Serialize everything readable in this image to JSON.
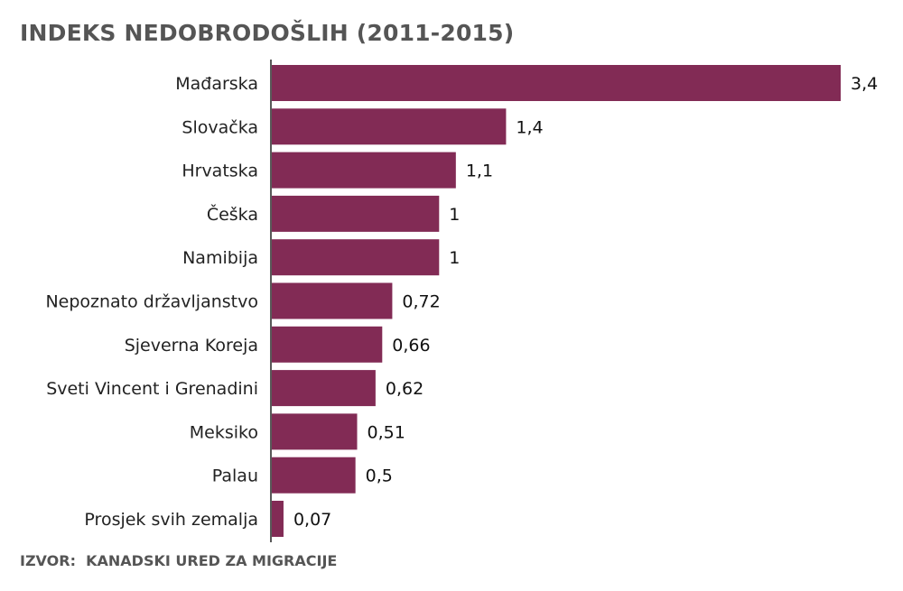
{
  "title": "INDEKS NEDOBRODOŠLIH (2011-2015)",
  "source": "IZVOR:  KANADSKI URED ZA MIGRACIJE",
  "colors": {
    "bar": "#822b55",
    "axis": "#222222",
    "title": "#555555"
  },
  "chart_data": {
    "type": "bar",
    "orientation": "horizontal",
    "title": "INDEKS NEDOBRODOŠLIH (2011-2015)",
    "xlabel": "",
    "ylabel": "",
    "xlim": [
      0,
      3.4
    ],
    "grid": false,
    "categories": [
      "Mađarska",
      "Slovačka",
      "Hrvatska",
      "Češka",
      "Namibija",
      "Nepoznato državljanstvo",
      "Sjeverna Koreja",
      "Sveti Vincent i Grenadini",
      "Meksiko",
      "Palau",
      "Prosjek svih zemalja"
    ],
    "values": [
      3.4,
      1.4,
      1.1,
      1,
      1,
      0.72,
      0.66,
      0.62,
      0.51,
      0.5,
      0.07
    ],
    "value_labels": [
      "3,4",
      "1,4",
      "1,1",
      "1",
      "1",
      "0,72",
      "0,66",
      "0,62",
      "0,51",
      "0,5",
      "0,07"
    ]
  }
}
